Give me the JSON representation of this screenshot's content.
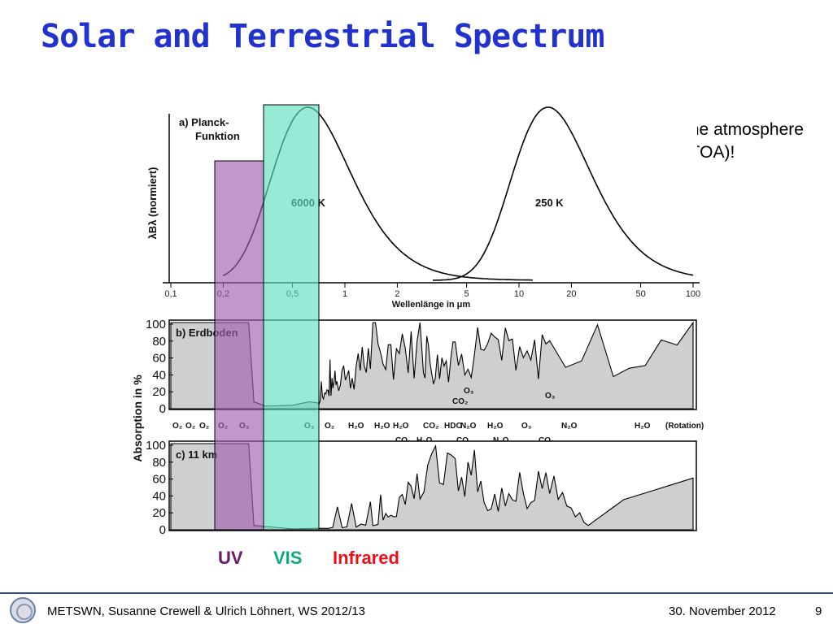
{
  "slide": {
    "title": "Solar and Terrestrial Spectrum",
    "note": "at Top of the atmosphere (TOA)!",
    "band_labels": {
      "uv": "UV",
      "vis": "VIS",
      "infrared": "Infrared"
    },
    "band_colors": {
      "uv": "#a060b0",
      "vis": "#60e0c0",
      "uv_text": "#6a1a6a",
      "vis_text": "#10a880",
      "infrared_text": "#e8101a"
    },
    "footer": {
      "left": "METSWN, Susanne Crewell & Ulrich Löhnert,  WS 2012/13",
      "date": "30. November 2012",
      "page": "9"
    }
  },
  "chart_data": [
    {
      "type": "line",
      "panel_label": "a) Planck-\nFunktion",
      "ylabel": "λB_λ (normiert)",
      "xlabel": "Wellenlänge in μm",
      "x_scale": "log",
      "xlim": [
        0.1,
        100
      ],
      "x_ticks": [
        "0,1",
        "0,2",
        "0,5",
        "1",
        "2",
        "5",
        "10",
        "20",
        "50",
        "100"
      ],
      "series": [
        {
          "name": "6000 K",
          "x": [
            0.1,
            0.2,
            0.3,
            0.4,
            0.5,
            0.6,
            0.8,
            1,
            2,
            5,
            10
          ],
          "y": [
            0.0,
            0.08,
            0.58,
            0.92,
            1.0,
            0.97,
            0.78,
            0.58,
            0.18,
            0.03,
            0.0
          ]
        },
        {
          "name": "250 K",
          "x": [
            3,
            5,
            7,
            10,
            12,
            15,
            20,
            30,
            50,
            100
          ],
          "y": [
            0.0,
            0.1,
            0.48,
            0.9,
            1.0,
            0.98,
            0.83,
            0.48,
            0.16,
            0.02
          ]
        }
      ]
    },
    {
      "type": "area",
      "panel_label": "b)  Erdboden",
      "ylabel": "Absorption in %",
      "ylim": [
        0,
        100
      ],
      "y_ticks": [
        "0",
        "20",
        "40",
        "60",
        "80",
        "100"
      ],
      "x_scale": "log",
      "xlim": [
        0.1,
        100
      ],
      "x": [
        0.1,
        0.28,
        0.3,
        0.35,
        0.5,
        0.7,
        0.8,
        0.9,
        1.1,
        1.4,
        1.9,
        2.7,
        3.3,
        4.3,
        6.3,
        9.6,
        15,
        100
      ],
      "y": [
        100,
        100,
        8,
        3,
        4,
        10,
        30,
        45,
        55,
        88,
        95,
        97,
        70,
        95,
        100,
        70,
        100,
        100
      ]
    },
    {
      "type": "area",
      "panel_label": "c)  11 km",
      "ylim": [
        0,
        100
      ],
      "y_ticks": [
        "0",
        "20",
        "40",
        "60",
        "80",
        "100"
      ],
      "x_scale": "log",
      "xlim": [
        0.1,
        100
      ],
      "x": [
        0.1,
        0.28,
        0.3,
        0.5,
        0.8,
        1.4,
        1.9,
        2.7,
        4.3,
        6.3,
        9.6,
        15,
        25,
        40,
        100
      ],
      "y": [
        100,
        100,
        5,
        1,
        2,
        10,
        25,
        85,
        100,
        60,
        40,
        100,
        5,
        35,
        60
      ]
    }
  ],
  "series_labels": {
    "s6000": "6000 K",
    "s250": "250 K"
  },
  "absorbers": {
    "row1": [
      "O₂",
      "O₂",
      "O₂",
      "O₂",
      "O₃",
      "O₃",
      "O₂",
      "H₂O",
      "H₂O",
      "H₂O",
      "CO₂",
      "HDO",
      "N₂O",
      "H₂O",
      "O₃",
      "N₂O",
      "H₂O",
      "(Rotation)"
    ],
    "row2": [
      "H₂O",
      "CO₂",
      "H₂O",
      "CO",
      "N₂O",
      "CO₂"
    ],
    "row3": [
      "CH₄",
      "CH₄"
    ],
    "panel_b_markers": [
      "CO₂",
      "O₃",
      "O₃"
    ]
  }
}
